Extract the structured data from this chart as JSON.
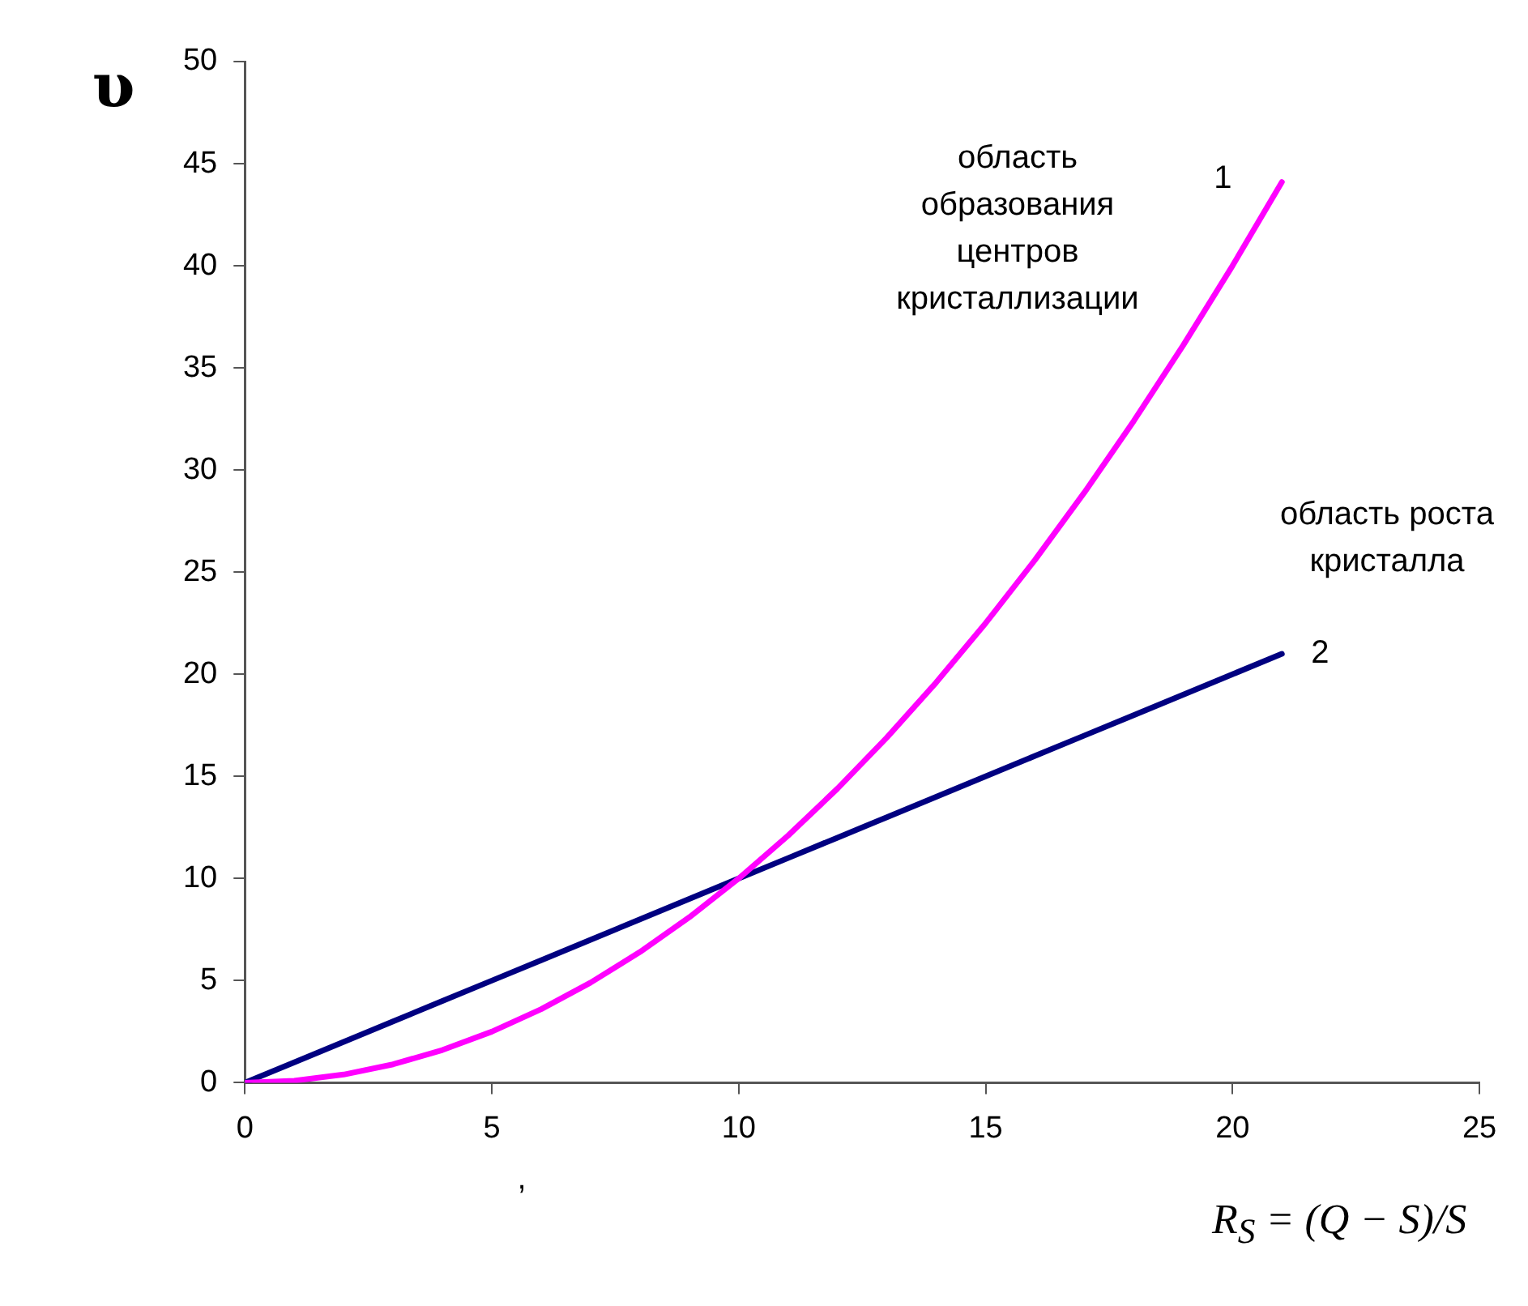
{
  "chart_data": {
    "type": "line",
    "ylabel": "υ",
    "xlabel": "R$_{S}$ = (Q − S)/S",
    "x": [
      0,
      1,
      2,
      3,
      4,
      5,
      6,
      7,
      8,
      9,
      10,
      11,
      12,
      13,
      14,
      15,
      16,
      17,
      18,
      19,
      20,
      21
    ],
    "series": [
      {
        "name": "1",
        "color": "#ff00ff",
        "values": [
          0,
          0.1,
          0.4,
          0.9,
          1.6,
          2.5,
          3.6,
          4.9,
          6.4,
          8.1,
          10,
          12.1,
          14.4,
          16.9,
          19.6,
          22.5,
          25.6,
          28.9,
          32.4,
          36.1,
          40,
          44.1
        ]
      },
      {
        "name": "2",
        "color": "#000080",
        "values": [
          0,
          1,
          2,
          3,
          4,
          5,
          6,
          7,
          8,
          9,
          10,
          11,
          12,
          13,
          14,
          15,
          16,
          17,
          18,
          19,
          20,
          21
        ]
      }
    ],
    "xlim": [
      0,
      25
    ],
    "xticks": [
      0,
      5,
      10,
      15,
      20,
      25
    ],
    "ylim": [
      0,
      50
    ],
    "yticks": [
      0,
      5,
      10,
      15,
      20,
      25,
      30,
      35,
      40,
      45,
      50
    ],
    "annotations": [
      "область образования центров кристаллизации",
      "область роста кристалла",
      ","
    ],
    "grid": false,
    "legend": false,
    "marker": "none",
    "line_style": "solid"
  }
}
